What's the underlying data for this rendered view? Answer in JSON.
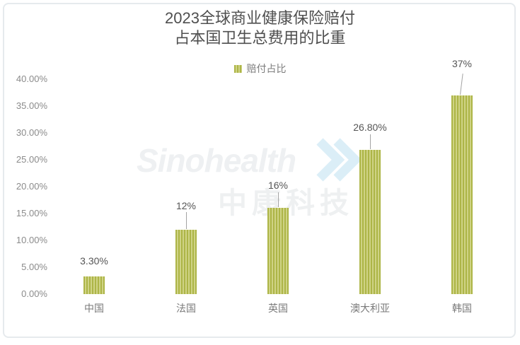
{
  "title": {
    "line1": "2023全球商业健康保险赔付",
    "line2": "占本国卫生总费用的比重"
  },
  "legend": {
    "label": "赔付占比"
  },
  "watermark": {
    "brand": "Sinohealth",
    "brand_cn": "中康科技"
  },
  "colors": {
    "bar_stripe_dark": "#adb547",
    "bar_stripe_light": "#cfd385",
    "title_text": "#4f4f4f",
    "axis_text": "#8b8b8b",
    "category_text": "#7a7a7a",
    "value_text": "#555555",
    "card_border": "#e6eaed",
    "watermark_gray": "#eef0f2",
    "watermark_blue": "#dbeef7"
  },
  "chart_data": {
    "type": "bar",
    "title": "2023全球商业健康保险赔付占本国卫生总费用的比重",
    "series_name": "赔付占比",
    "categories": [
      "中国",
      "法国",
      "英国",
      "澳大利亚",
      "韩国"
    ],
    "values": [
      3.3,
      12,
      16,
      26.8,
      37
    ],
    "value_labels": [
      "3.30%",
      "12%",
      "16%",
      "26.80%",
      "37%"
    ],
    "xlabel": "",
    "ylabel": "",
    "ylim": [
      0,
      40
    ],
    "ytick_step": 5,
    "yticks": [
      "0.00%",
      "5.00%",
      "10.00%",
      "15.00%",
      "20.00%",
      "25.00%",
      "30.00%",
      "35.00%",
      "40.00%"
    ],
    "grid": false,
    "legend_position": "top-center"
  }
}
